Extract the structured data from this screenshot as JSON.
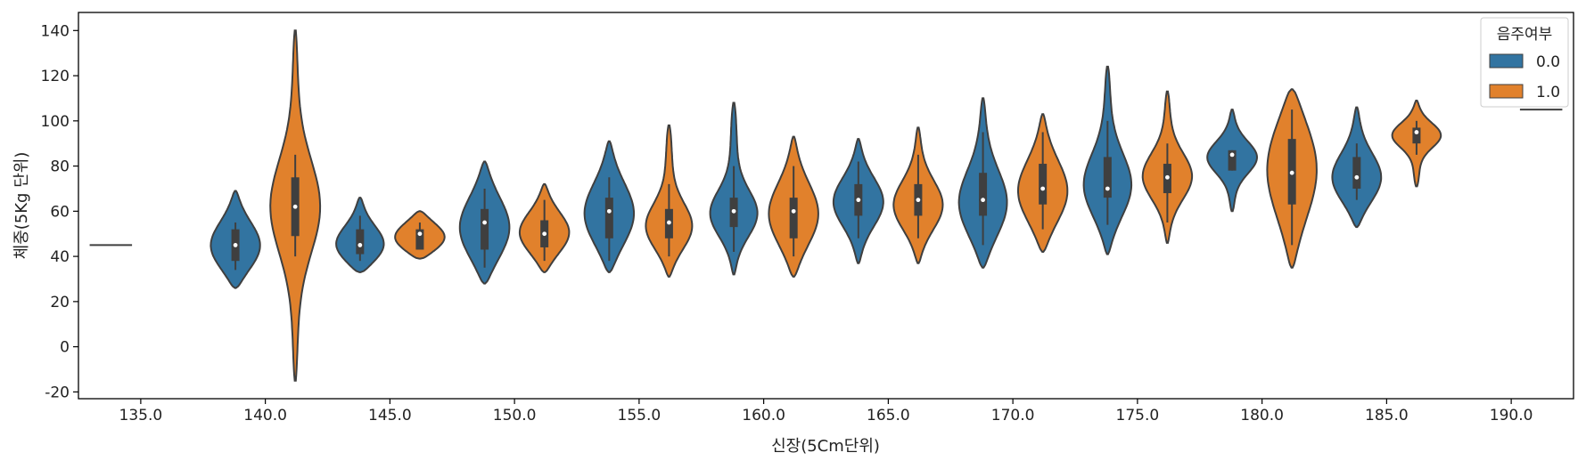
{
  "chart_data": {
    "type": "violin",
    "xlabel": "신장(5Cm단위)",
    "ylabel": "체중(5Kg 단위)",
    "ylim": [
      -23,
      148
    ],
    "yticks": [
      -20,
      0,
      20,
      40,
      60,
      80,
      100,
      120,
      140
    ],
    "categories": [
      "135.0",
      "140.0",
      "145.0",
      "150.0",
      "155.0",
      "160.0",
      "165.0",
      "170.0",
      "175.0",
      "180.0",
      "185.0",
      "190.0"
    ],
    "legend": {
      "title": "음주여부",
      "placement": "top-right",
      "entries": [
        {
          "label": "0.0",
          "color": "#3274a1"
        },
        {
          "label": "1.0",
          "color": "#e1812c"
        }
      ]
    },
    "series": [
      {
        "name": "0.0",
        "color": "#3274a1",
        "violins": [
          {
            "category": "135.0",
            "degenerate": true,
            "value": 45
          },
          {
            "category": "140.0",
            "range": [
              26,
              69
            ],
            "q1": 38,
            "median": 45,
            "q3": 52,
            "whisker": [
              34,
              55
            ],
            "peak": 44
          },
          {
            "category": "145.0",
            "range": [
              33,
              66
            ],
            "q1": 41,
            "median": 45,
            "q3": 52,
            "whisker": [
              38,
              58
            ],
            "peak": 44
          },
          {
            "category": "150.0",
            "range": [
              28,
              82
            ],
            "q1": 43,
            "median": 55,
            "q3": 61,
            "whisker": [
              35,
              70
            ],
            "peak": 52
          },
          {
            "category": "155.0",
            "range": [
              33,
              91
            ],
            "q1": 48,
            "median": 60,
            "q3": 66,
            "whisker": [
              38,
              75
            ],
            "peak": 58
          },
          {
            "category": "160.0",
            "range": [
              32,
              108
            ],
            "q1": 53,
            "median": 60,
            "q3": 66,
            "whisker": [
              42,
              80
            ],
            "peak": 58
          },
          {
            "category": "165.0",
            "range": [
              37,
              92
            ],
            "q1": 58,
            "median": 65,
            "q3": 72,
            "whisker": [
              48,
              82
            ],
            "peak": 64
          },
          {
            "category": "170.0",
            "range": [
              35,
              110
            ],
            "q1": 58,
            "median": 65,
            "q3": 77,
            "whisker": [
              45,
              95
            ],
            "peak": 62
          },
          {
            "category": "175.0",
            "range": [
              41,
              124
            ],
            "q1": 66,
            "median": 70,
            "q3": 84,
            "whisker": [
              54,
              100
            ],
            "peak": 70
          },
          {
            "category": "180.0",
            "range": [
              60,
              105
            ],
            "q1": 78,
            "median": 85,
            "q3": 87,
            "whisker": [
              78,
              87
            ],
            "peak": 84
          },
          {
            "category": "185.0",
            "range": [
              53,
              106
            ],
            "q1": 70,
            "median": 75,
            "q3": 84,
            "whisker": [
              65,
              90
            ],
            "peak": 74
          },
          {
            "category": "190.0",
            "degenerate": false
          }
        ]
      },
      {
        "name": "1.0",
        "color": "#e1812c",
        "violins": [
          {
            "category": "135.0",
            "degenerate": false
          },
          {
            "category": "140.0",
            "range": [
              -15,
              140
            ],
            "q1": 49,
            "median": 62,
            "q3": 75,
            "whisker": [
              40,
              85
            ],
            "peak": 62
          },
          {
            "category": "145.0",
            "range": [
              39,
              60
            ],
            "q1": 43,
            "median": 50,
            "q3": 52,
            "whisker": [
              43,
              55
            ],
            "peak": 48
          },
          {
            "category": "150.0",
            "range": [
              33,
              72
            ],
            "q1": 44,
            "median": 50,
            "q3": 56,
            "whisker": [
              38,
              65
            ],
            "peak": 50
          },
          {
            "category": "155.0",
            "range": [
              31,
              98
            ],
            "q1": 48,
            "median": 55,
            "q3": 61,
            "whisker": [
              40,
              72
            ],
            "peak": 52
          },
          {
            "category": "160.0",
            "range": [
              31,
              93
            ],
            "q1": 48,
            "median": 60,
            "q3": 66,
            "whisker": [
              40,
              80
            ],
            "peak": 58
          },
          {
            "category": "165.0",
            "range": [
              37,
              97
            ],
            "q1": 58,
            "median": 65,
            "q3": 72,
            "whisker": [
              48,
              85
            ],
            "peak": 62
          },
          {
            "category": "170.0",
            "range": [
              42,
              103
            ],
            "q1": 63,
            "median": 70,
            "q3": 81,
            "whisker": [
              52,
              95
            ],
            "peak": 68
          },
          {
            "category": "175.0",
            "range": [
              46,
              113
            ],
            "q1": 68,
            "median": 75,
            "q3": 81,
            "whisker": [
              55,
              90
            ],
            "peak": 75
          },
          {
            "category": "180.0",
            "range": [
              35,
              114
            ],
            "q1": 63,
            "median": 77,
            "q3": 92,
            "whisker": [
              45,
              105
            ],
            "peak": 80
          },
          {
            "category": "185.0",
            "range": [
              71,
              109
            ],
            "q1": 90,
            "median": 95,
            "q3": 97,
            "whisker": [
              85,
              100
            ],
            "peak": 94
          },
          {
            "category": "190.0",
            "degenerate": true,
            "value": 105
          }
        ]
      }
    ]
  }
}
